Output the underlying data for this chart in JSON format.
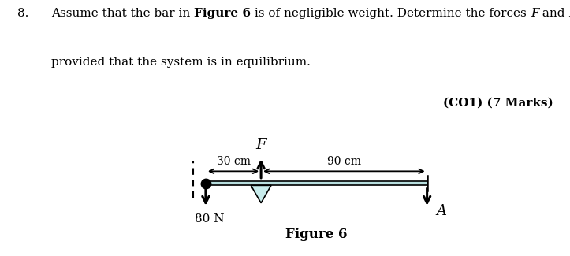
{
  "fig_width": 7.23,
  "fig_height": 3.25,
  "dpi": 100,
  "background_color": "#ffffff",
  "text_color": "#000000",
  "arrow_color": "#000000",
  "bar_color": "#b8dede",
  "bar_edge_color": "#000000",
  "triangle_color": "#c8ecec",
  "triangle_edge_color": "#000000",
  "question_line1": "Assume that the bar in ",
  "question_bold1": "Figure 6",
  "question_mid1": " is of negligible weight. Determine the forces ",
  "question_italic1": "F",
  "question_mid2": " and ",
  "question_italic2": "A",
  "question_end1": ",",
  "question_line2": "provided that the system is in equilibrium.",
  "marks_text": "(CO1) (7 Marks)",
  "force_F_label": "F",
  "force_A_label": "A",
  "force_80N_label": "80 N",
  "dim_30_label": "30 cm",
  "dim_90_label": "90 cm",
  "figure_label": "Figure 6"
}
